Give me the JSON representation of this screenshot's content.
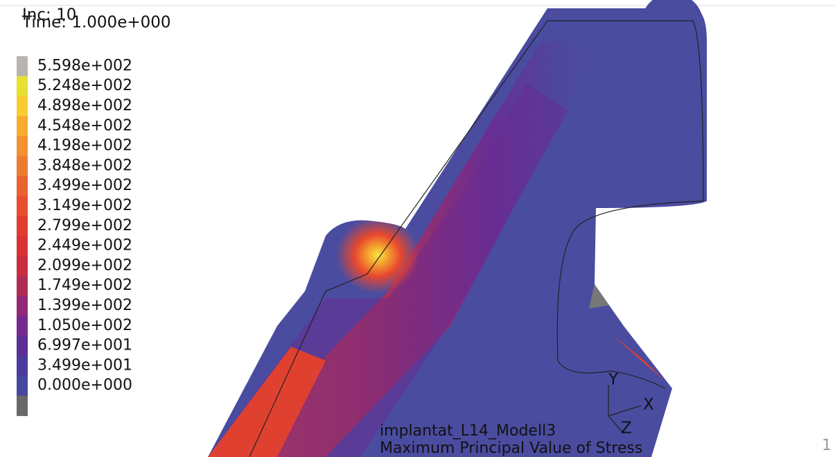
{
  "header": {
    "inc": "Inc: 10",
    "time": "Time: 1.000e+000"
  },
  "legend": {
    "labels": [
      "5.598e+002",
      "5.248e+002",
      "4.898e+002",
      "4.548e+002",
      "4.198e+002",
      "3.848e+002",
      "3.499e+002",
      "3.149e+002",
      "2.799e+002",
      "2.449e+002",
      "2.099e+002",
      "1.749e+002",
      "1.399e+002",
      "1.050e+002",
      "6.997e+001",
      "3.499e+001",
      "0.000e+000"
    ]
  },
  "axes": {
    "y": "Y",
    "x": "X",
    "z": "Z"
  },
  "footer": {
    "model": "implantat_L14_Modell3",
    "quantity": "Maximum Principal Value of Stress"
  },
  "page_number": "1"
}
